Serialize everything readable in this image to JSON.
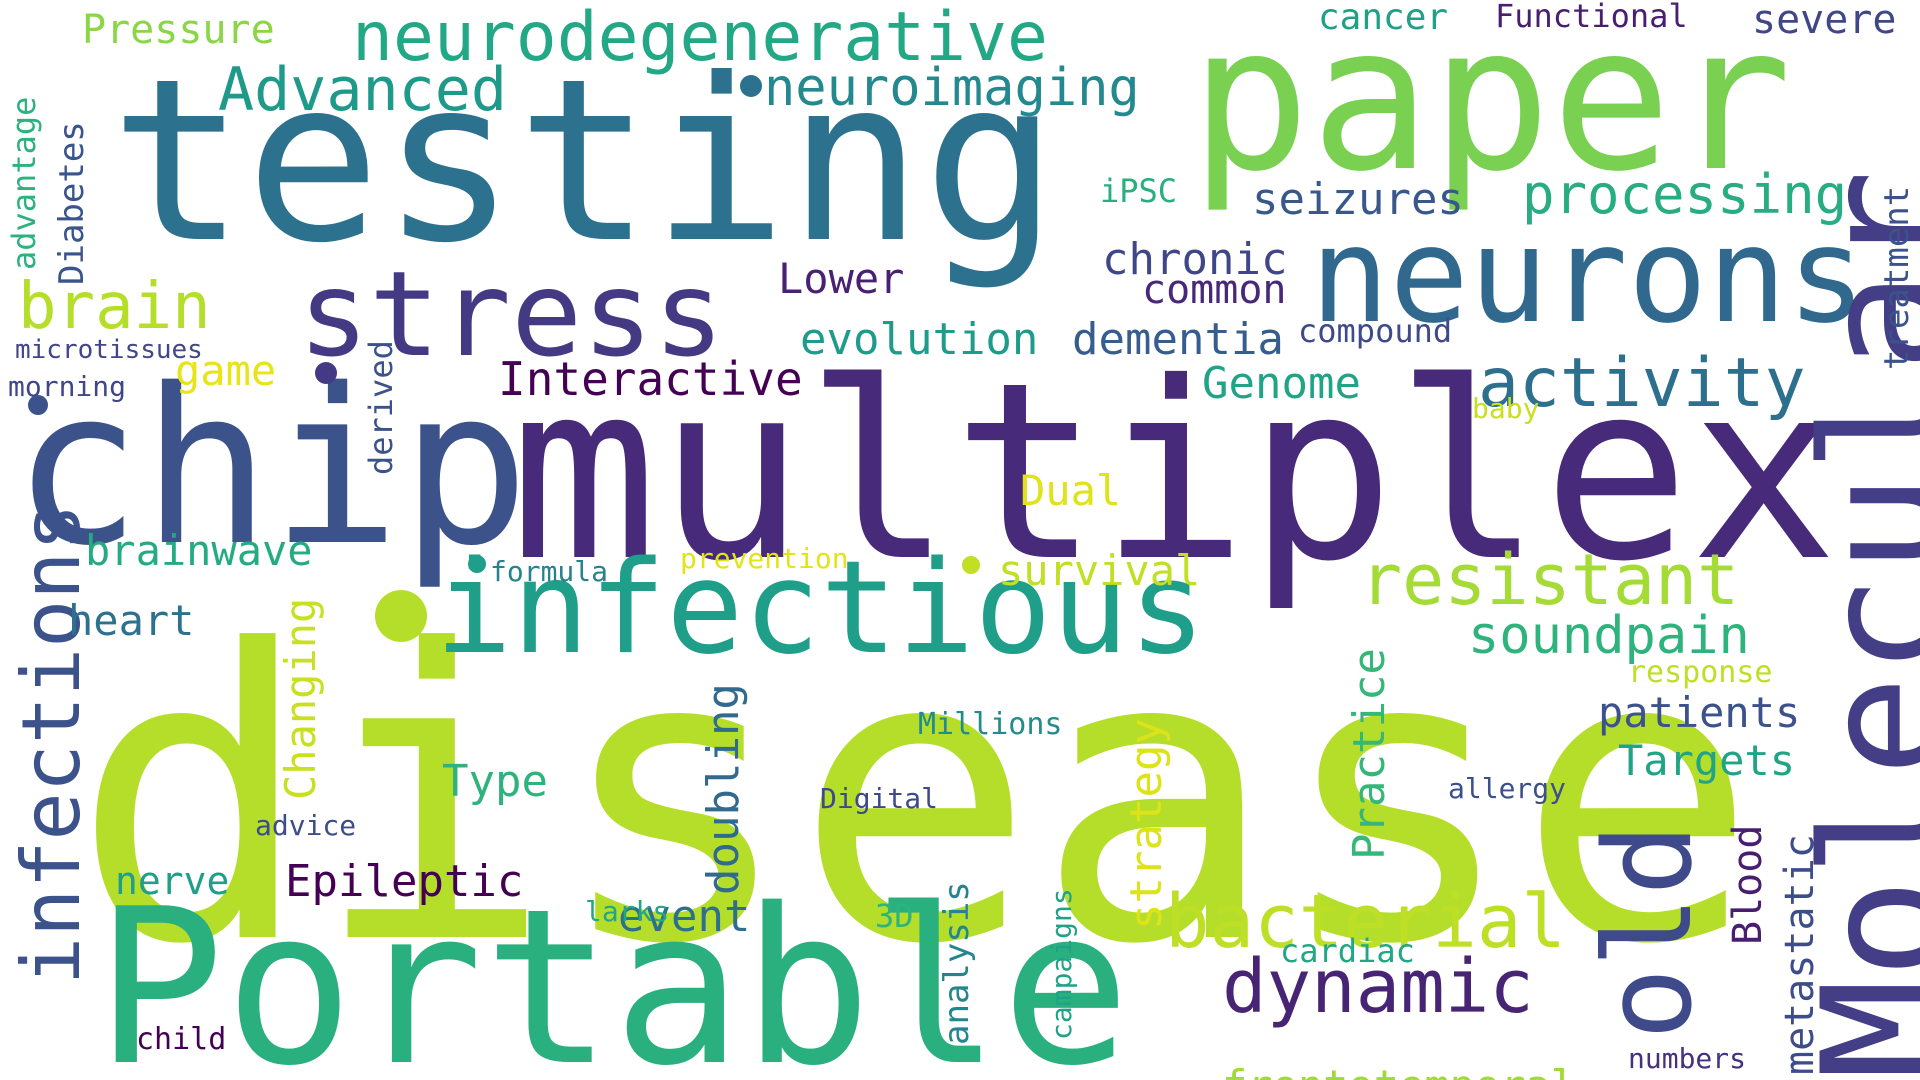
{
  "words": [
    {
      "text": "disease",
      "color": "#b5de2b"
    },
    {
      "text": "multiplex",
      "color": "#472a7a"
    },
    {
      "text": "testing",
      "color": "#2c728e"
    },
    {
      "text": "paper",
      "color": "#7ad151"
    },
    {
      "text": "Portable",
      "color": "#2ab07f"
    },
    {
      "text": "chip",
      "color": "#3b528b"
    },
    {
      "text": "infectious",
      "color": "#1f9e89"
    },
    {
      "text": "neurons",
      "color": "#31688e"
    },
    {
      "text": "Molecular",
      "color": "#433e85"
    },
    {
      "text": "stress",
      "color": "#443983"
    },
    {
      "text": "old",
      "color": "#3e4a89"
    },
    {
      "text": "infections",
      "color": "#3b528b"
    },
    {
      "text": "resistant",
      "color": "#a5db36"
    },
    {
      "text": "bacterial",
      "color": "#bddf26"
    },
    {
      "text": "dynamic",
      "color": "#482475"
    },
    {
      "text": "activity",
      "color": "#2d708e"
    },
    {
      "text": "neurodegenerative",
      "color": "#22a884"
    },
    {
      "text": "brain",
      "color": "#b5de2b"
    },
    {
      "text": "processing",
      "color": "#27ad81"
    },
    {
      "text": "Advanced",
      "color": "#1f9a8a"
    },
    {
      "text": "neuroimaging",
      "color": "#23898e"
    },
    {
      "text": "soundpain",
      "color": "#2eb37c"
    },
    {
      "text": "frontotemporal",
      "color": "#a0da39"
    },
    {
      "text": "Interactive",
      "color": "#440154"
    },
    {
      "text": "evolution",
      "color": "#1e9b8a"
    },
    {
      "text": "dementia",
      "color": "#365d8d"
    },
    {
      "text": "chronic",
      "color": "#3f4788"
    },
    {
      "text": "common",
      "color": "#482878"
    },
    {
      "text": "seizures",
      "color": "#38588c"
    },
    {
      "text": "Genome",
      "color": "#20a486"
    },
    {
      "text": "survival",
      "color": "#c2df23"
    },
    {
      "text": "Epileptic",
      "color": "#440154"
    },
    {
      "text": "patients",
      "color": "#3b528b"
    },
    {
      "text": "Targets",
      "color": "#20a486"
    },
    {
      "text": "doubling",
      "color": "#306a8e"
    },
    {
      "text": "Practice",
      "color": "#35b779"
    },
    {
      "text": "strategy",
      "color": "#dde318"
    },
    {
      "text": "Changing",
      "color": "#c8e020"
    },
    {
      "text": "brainwave",
      "color": "#25ab82"
    },
    {
      "text": "heart",
      "color": "#2c718e"
    },
    {
      "text": "event",
      "color": "#2e6f8e"
    },
    {
      "text": "Type",
      "color": "#2eb37c"
    },
    {
      "text": "nerve",
      "color": "#1f9e89"
    },
    {
      "text": "Lower",
      "color": "#482173"
    },
    {
      "text": "Dual",
      "color": "#dfe318"
    },
    {
      "text": "treatment",
      "color": "#3b528b"
    },
    {
      "text": "metastatic",
      "color": "#3d4d8a"
    },
    {
      "text": "Blood",
      "color": "#481f70"
    },
    {
      "text": "Diabetes",
      "color": "#3a548c"
    },
    {
      "text": "advantage",
      "color": "#2db27d"
    },
    {
      "text": "Pressure",
      "color": "#8bd646"
    },
    {
      "text": "cancer",
      "color": "#1fa188"
    },
    {
      "text": "Functional",
      "color": "#481f70"
    },
    {
      "text": "severe",
      "color": "#3f4788"
    },
    {
      "text": "iPSC",
      "color": "#29af7f"
    },
    {
      "text": "compound",
      "color": "#3e4a89"
    },
    {
      "text": "baby",
      "color": "#c8e020"
    },
    {
      "text": "game",
      "color": "#e7e419"
    },
    {
      "text": "microtissues",
      "color": "#404688"
    },
    {
      "text": "morning",
      "color": "#3f4788"
    },
    {
      "text": "derived",
      "color": "#3b528b"
    },
    {
      "text": "formula",
      "color": "#26828e"
    },
    {
      "text": "prevention",
      "color": "#e2e418"
    },
    {
      "text": "response",
      "color": "#bddf26"
    },
    {
      "text": "Millions",
      "color": "#228c8d"
    },
    {
      "text": "Digital",
      "color": "#3e4989"
    },
    {
      "text": "allergy",
      "color": "#3c4f8a"
    },
    {
      "text": "advice",
      "color": "#3e4c8a"
    },
    {
      "text": "larks",
      "color": "#22a785"
    },
    {
      "text": "3D",
      "color": "#2eb37c"
    },
    {
      "text": "analysis",
      "color": "#25858e"
    },
    {
      "text": "campaigns",
      "color": "#1fa287"
    },
    {
      "text": "cardiac",
      "color": "#22a785"
    },
    {
      "text": "child",
      "color": "#440154"
    },
    {
      "text": "numbers",
      "color": "#46317e"
    }
  ],
  "dots": [
    {
      "color": "#2c728e"
    },
    {
      "color": "#443983"
    },
    {
      "color": "#3b528b"
    },
    {
      "color": "#b5de2b"
    },
    {
      "color": "#1f9e89"
    },
    {
      "color": "#c2df23"
    }
  ]
}
